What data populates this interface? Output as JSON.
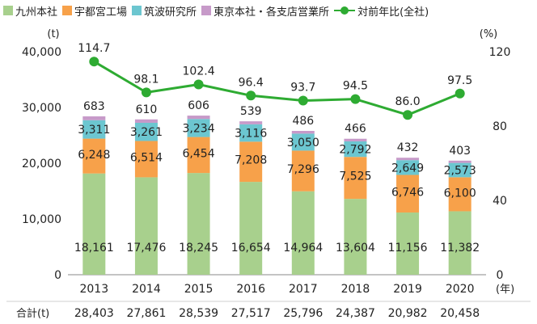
{
  "chart_data": {
    "type": "bar",
    "stacked": true,
    "categories": [
      "2013",
      "2014",
      "2015",
      "2016",
      "2017",
      "2018",
      "2019",
      "2020"
    ],
    "x_unit_label": "(年)",
    "y_left_unit": "(t)",
    "y_right_unit": "(%)",
    "ylim_left": [
      0,
      40000
    ],
    "yticks_left": [
      "0",
      "10,000",
      "20,000",
      "30,000",
      "40,000"
    ],
    "ylim_right": [
      0,
      120
    ],
    "yticks_right": [
      "0",
      "40",
      "80",
      "120"
    ],
    "series": [
      {
        "name": "九州本社",
        "color": "#a8d08d",
        "values": [
          18161,
          17476,
          18245,
          16654,
          14964,
          13604,
          11156,
          11382
        ],
        "labels": [
          "18,161",
          "17,476",
          "18,245",
          "16,654",
          "14,964",
          "13,604",
          "11,156",
          "11,382"
        ]
      },
      {
        "name": "宇都宮工場",
        "color": "#f7a14a",
        "values": [
          6248,
          6514,
          6454,
          7208,
          7296,
          7525,
          6746,
          6100
        ],
        "labels": [
          "6,248",
          "6,514",
          "6,454",
          "7,208",
          "7,296",
          "7,525",
          "6,746",
          "6,100"
        ]
      },
      {
        "name": "筑波研究所",
        "color": "#6cc6d0",
        "values": [
          3311,
          3261,
          3234,
          3116,
          3050,
          2792,
          2649,
          2573
        ],
        "labels": [
          "3,311",
          "3,261",
          "3,234",
          "3,116",
          "3,050",
          "2,792",
          "2,649",
          "2,573"
        ]
      },
      {
        "name": "東京本社・各支店営業所",
        "color": "#c79ac9",
        "values": [
          683,
          610,
          606,
          539,
          486,
          466,
          432,
          403
        ],
        "labels": [
          "683",
          "610",
          "606",
          "539",
          "486",
          "466",
          "432",
          "403"
        ]
      }
    ],
    "line_series": {
      "name": "対前年比(全社)",
      "color": "#2eab32",
      "axis": "right",
      "values": [
        114.7,
        98.1,
        102.4,
        96.4,
        93.7,
        94.5,
        86.0,
        97.5
      ],
      "labels": [
        "114.7",
        "98.1",
        "102.4",
        "96.4",
        "93.7",
        "94.5",
        "86.0",
        "97.5"
      ]
    },
    "totals_label": "合計(t)",
    "totals": [
      "28,403",
      "27,861",
      "28,539",
      "27,517",
      "25,796",
      "24,387",
      "20,982",
      "20,458"
    ],
    "grid": false,
    "legend_position": "top-left"
  }
}
